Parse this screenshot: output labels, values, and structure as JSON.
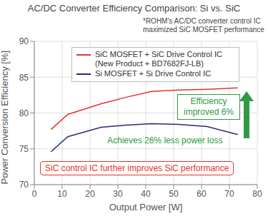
{
  "chart_data": {
    "type": "line",
    "title": "AC/DC Converter Efficiency Comparison: Si vs. SiC",
    "subtitle": "*ROHM's AC/DC converter control IC maximized SiC MOSFET performance",
    "x_label": "Output Power [W]",
    "y_label": "Power Conversion Efficiency [%]",
    "x": [
      6,
      12,
      24,
      33,
      42,
      52,
      62,
      73
    ],
    "series": [
      {
        "name": "SiC MOSFET + SiC Drive Control IC (New Product + BD7682FJ-LB)",
        "color": "#e8322a",
        "values": [
          77.7,
          79.8,
          81.3,
          82.2,
          83.0,
          83.2,
          83.3,
          83.5
        ]
      },
      {
        "name": "Si MOSFET + Si Drive Control IC",
        "color": "#2a2a7a",
        "values": [
          74.6,
          76.7,
          78.0,
          78.3,
          78.5,
          78.4,
          78.1,
          77.0
        ]
      }
    ],
    "xlim": [
      0,
      80
    ],
    "xticks": [
      0,
      10,
      20,
      30,
      40,
      50,
      60,
      70,
      80
    ],
    "ylim": [
      70,
      90
    ],
    "yticks": [
      70,
      75,
      80,
      85,
      90
    ],
    "grid": true,
    "legend": "top-left",
    "annotations": [
      "Efficiency improved 6%",
      "Achieves 26% less power loss",
      "SiC control IC further improves SiC performance"
    ]
  }
}
